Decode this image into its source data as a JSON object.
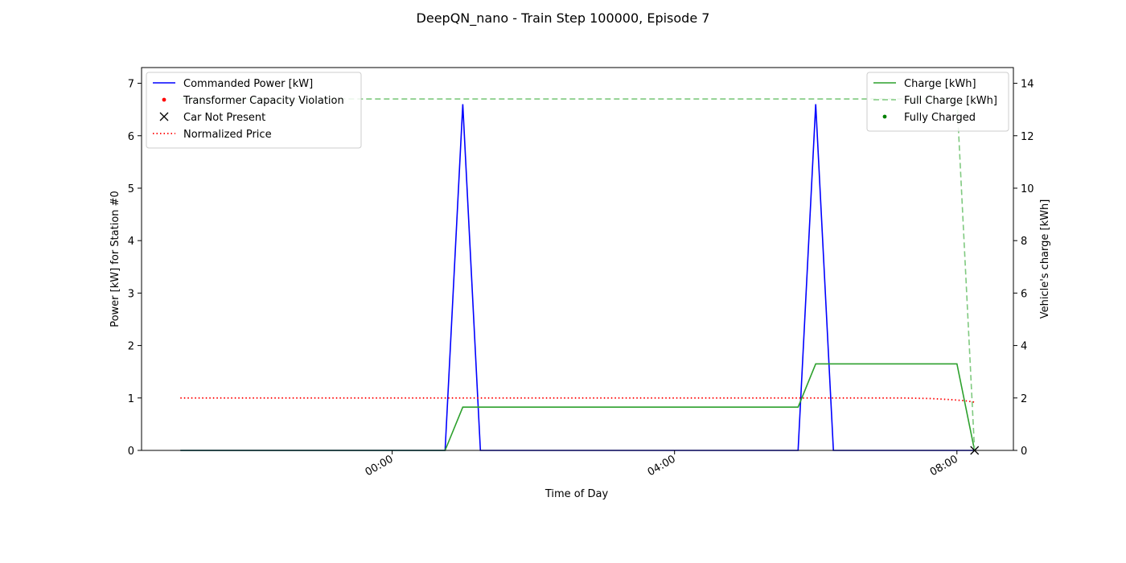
{
  "chart_data": {
    "type": "line",
    "title": "DeepQN_nano - Train Step 100000, Episode 7",
    "xlabel": "Time of Day",
    "ylabel_left": "Power [kW] for Station #0",
    "ylabel_right": "Vehicle's charge [kWh]",
    "x_unit": "hours relative to 00:00",
    "xlim": [
      -3.55,
      8.8
    ],
    "ylim_left": [
      0,
      7.3
    ],
    "ylim_right": [
      0,
      14.6
    ],
    "x_ticks": [
      {
        "x": 0,
        "label": "00:00"
      },
      {
        "x": 4,
        "label": "04:00"
      },
      {
        "x": 8,
        "label": "08:00"
      }
    ],
    "y_ticks_left": [
      0,
      1,
      2,
      3,
      4,
      5,
      6,
      7
    ],
    "y_ticks_right": [
      0,
      2,
      4,
      6,
      8,
      10,
      12,
      14
    ],
    "legend_left": {
      "placement": "upper-left",
      "entries": [
        {
          "label": "Commanded Power [kW]",
          "style": "line",
          "color": "#0000ff"
        },
        {
          "label": "Transformer Capacity Violation",
          "style": "dot",
          "color": "#ff0000"
        },
        {
          "label": "Car Not Present",
          "style": "x",
          "color": "#000000"
        },
        {
          "label": "Normalized Price",
          "style": "dotted",
          "color": "#ff0000"
        }
      ]
    },
    "legend_right": {
      "placement": "upper-right",
      "entries": [
        {
          "label": "Charge [kWh]",
          "style": "line",
          "color": "#2ca02c"
        },
        {
          "label": "Full Charge [kWh]",
          "style": "dashed",
          "color": "#7fc97f"
        },
        {
          "label": "Fully Charged",
          "style": "dot",
          "color": "#008000"
        }
      ]
    },
    "series": [
      {
        "name": "Commanded Power [kW]",
        "axis": "left",
        "color": "#0000ff",
        "style": "solid",
        "points": [
          [
            -3.0,
            0
          ],
          [
            0.75,
            0
          ],
          [
            1.0,
            6.6
          ],
          [
            1.25,
            0
          ],
          [
            5.75,
            0
          ],
          [
            6.0,
            6.6
          ],
          [
            6.25,
            0
          ],
          [
            8.25,
            0
          ]
        ]
      },
      {
        "name": "Normalized Price",
        "axis": "left",
        "color": "#ff0000",
        "style": "dotted",
        "points": [
          [
            -3.0,
            1.0
          ],
          [
            0,
            1.0
          ],
          [
            4,
            1.0
          ],
          [
            7.2,
            1.0
          ],
          [
            7.6,
            0.99
          ],
          [
            7.9,
            0.97
          ],
          [
            8.1,
            0.95
          ],
          [
            8.25,
            0.92
          ]
        ]
      },
      {
        "name": "Charge [kWh]",
        "axis": "right",
        "color": "#2ca02c",
        "style": "solid",
        "points": [
          [
            -3.0,
            0
          ],
          [
            0.75,
            0
          ],
          [
            1.0,
            1.65
          ],
          [
            5.75,
            1.65
          ],
          [
            6.0,
            3.3
          ],
          [
            8.0,
            3.3
          ],
          [
            8.25,
            0
          ]
        ]
      },
      {
        "name": "Full Charge [kWh]",
        "axis": "right",
        "color": "#7fc97f",
        "style": "dashed",
        "points": [
          [
            -3.0,
            13.4
          ],
          [
            8.0,
            13.4
          ],
          [
            8.25,
            0
          ]
        ]
      }
    ],
    "car_not_present_markers": [
      [
        8.25,
        0
      ]
    ]
  }
}
